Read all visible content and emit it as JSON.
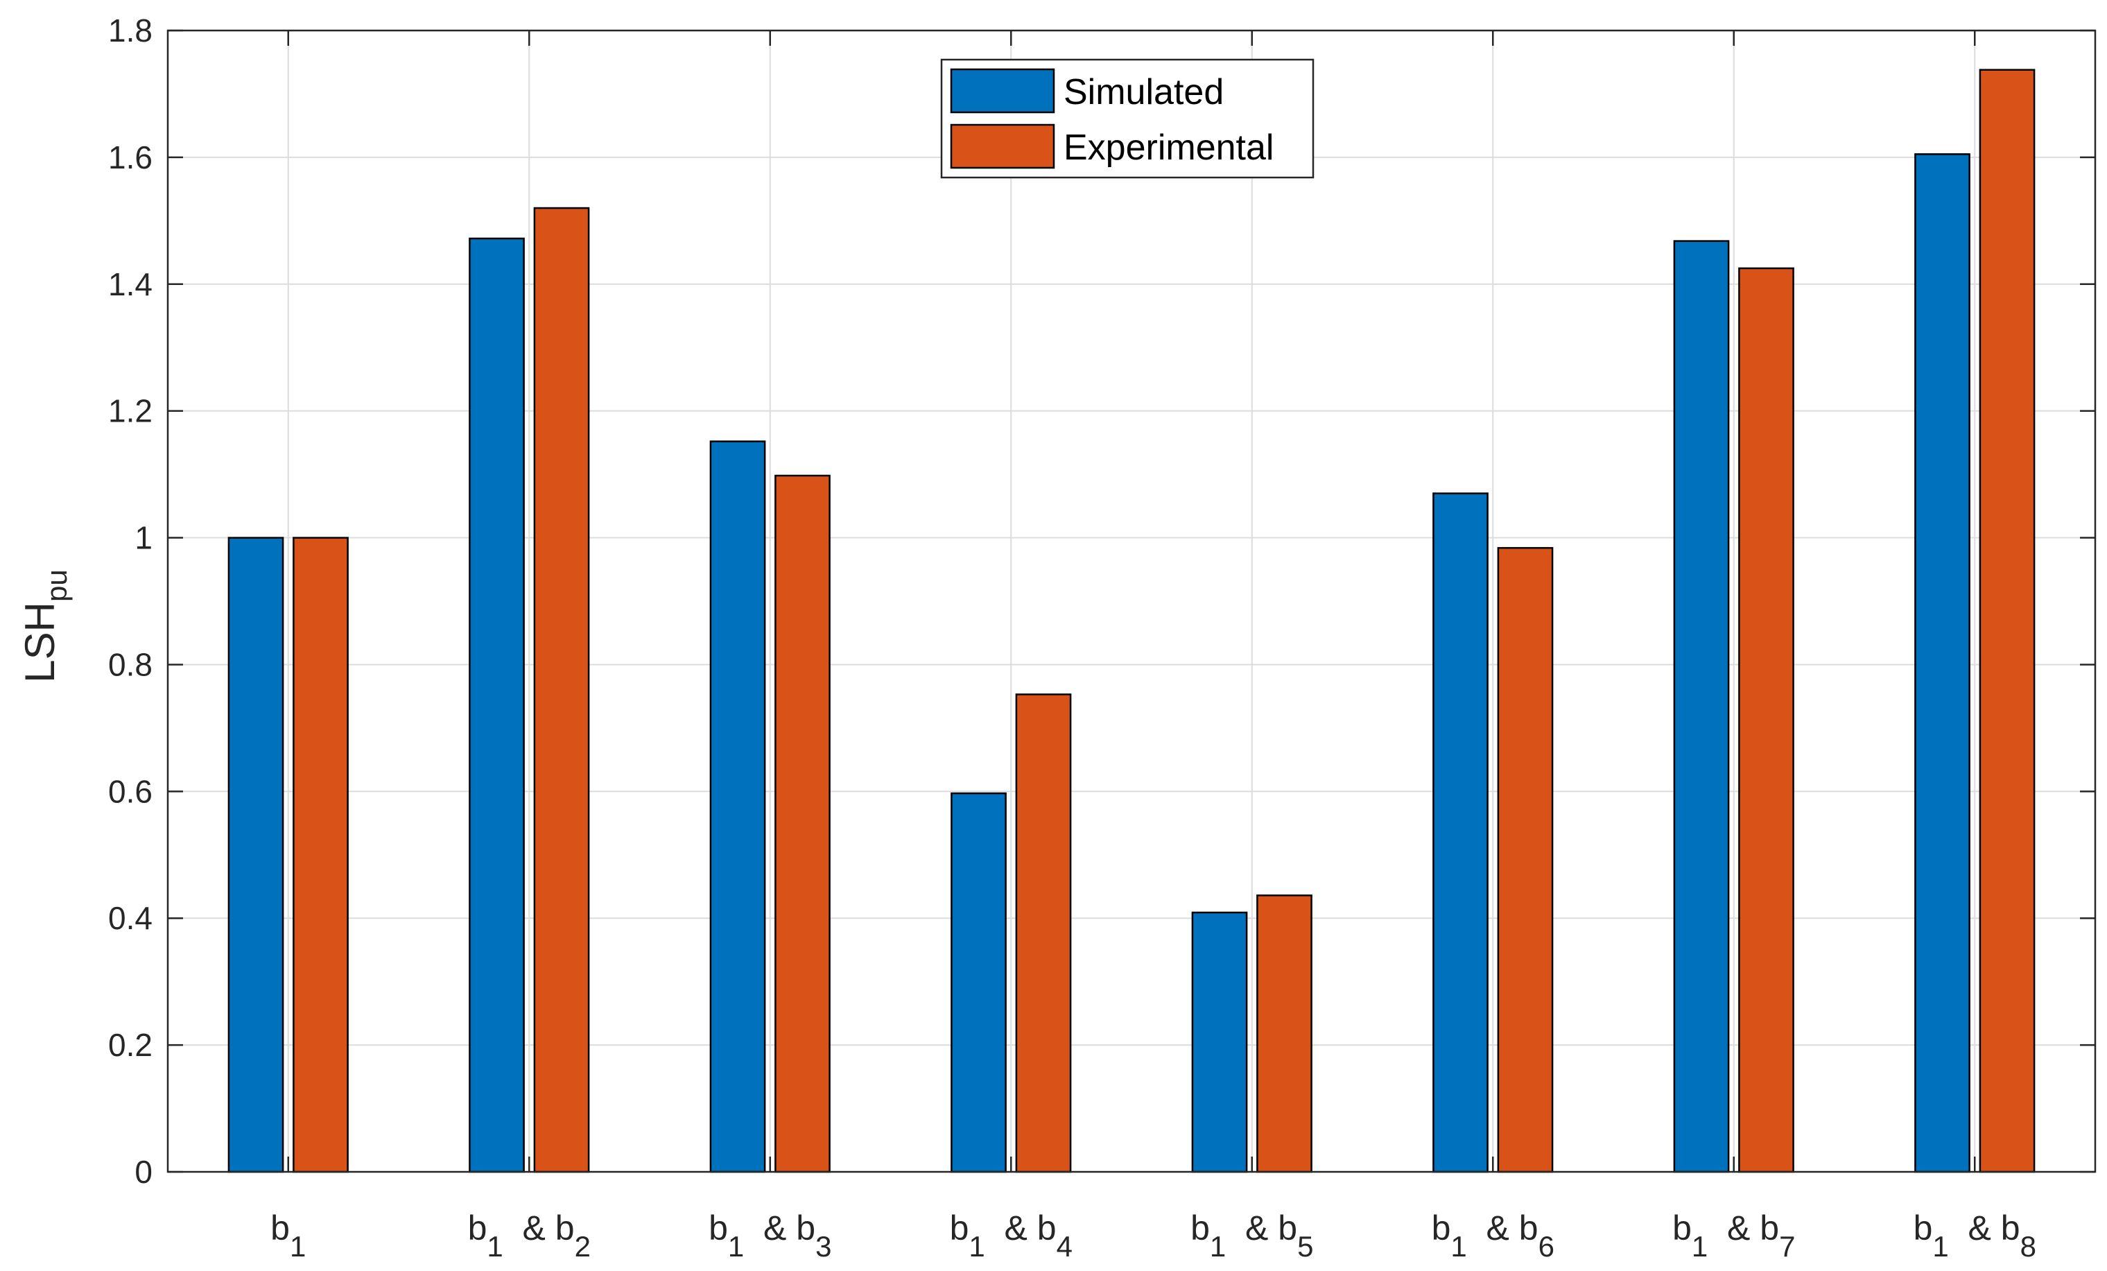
{
  "chart_data": {
    "type": "bar",
    "title": "",
    "xlabel": "",
    "ylabel": {
      "main": "LSH",
      "sub": "pu"
    },
    "ylim": [
      0,
      1.8
    ],
    "yticks": [
      "0",
      "0.2",
      "0.4",
      "0.6",
      "0.8",
      "1",
      "1.2",
      "1.4",
      "1.6",
      "1.8"
    ],
    "grid": true,
    "legend_position": "top-center",
    "categories": [
      {
        "main": "b",
        "sub": "1",
        "joiner": "",
        "main2": "",
        "sub2": ""
      },
      {
        "main": "b",
        "sub": "1",
        "joiner": "&",
        "main2": "b",
        "sub2": "2"
      },
      {
        "main": "b",
        "sub": "1",
        "joiner": "&",
        "main2": "b",
        "sub2": "3"
      },
      {
        "main": "b",
        "sub": "1",
        "joiner": "&",
        "main2": "b",
        "sub2": "4"
      },
      {
        "main": "b",
        "sub": "1",
        "joiner": "&",
        "main2": "b",
        "sub2": "5"
      },
      {
        "main": "b",
        "sub": "1",
        "joiner": "&",
        "main2": "b",
        "sub2": "6"
      },
      {
        "main": "b",
        "sub": "1",
        "joiner": "&",
        "main2": "b",
        "sub2": "7"
      },
      {
        "main": "b",
        "sub": "1",
        "joiner": "&",
        "main2": "b",
        "sub2": "8"
      }
    ],
    "series": [
      {
        "name": "Simulated",
        "color": "#0072BD",
        "values": [
          1.0,
          1.472,
          1.152,
          0.597,
          0.409,
          1.07,
          1.468,
          1.605
        ]
      },
      {
        "name": "Experimental",
        "color": "#D95319",
        "values": [
          1.0,
          1.52,
          1.098,
          0.753,
          0.436,
          0.984,
          1.425,
          1.738
        ]
      }
    ]
  }
}
